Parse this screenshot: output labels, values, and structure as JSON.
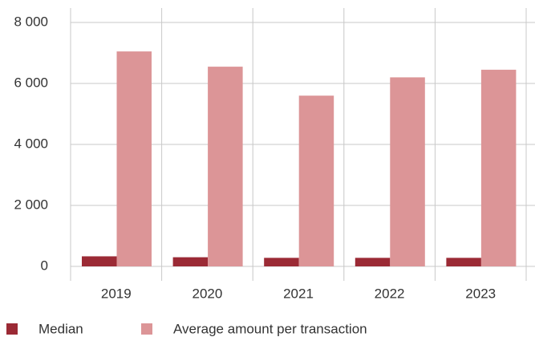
{
  "chart_data": {
    "type": "bar",
    "categories": [
      "2019",
      "2020",
      "2021",
      "2022",
      "2023"
    ],
    "series": [
      {
        "name": "Median",
        "color": "#9b2a35",
        "values": [
          330,
          300,
          280,
          280,
          280
        ]
      },
      {
        "name": "Average amount per transaction",
        "color": "#dc9597",
        "values": [
          7050,
          6550,
          5600,
          6200,
          6450
        ]
      }
    ],
    "ylim": [
      0,
      8000
    ],
    "yticks": [
      0,
      {
        "value": 2000,
        "label": "2 000"
      },
      {
        "value": 4000,
        "label": "4 000"
      },
      {
        "value": 6000,
        "label": "6 000"
      },
      {
        "value": 8000,
        "label": "8 000"
      }
    ],
    "grid": true
  }
}
